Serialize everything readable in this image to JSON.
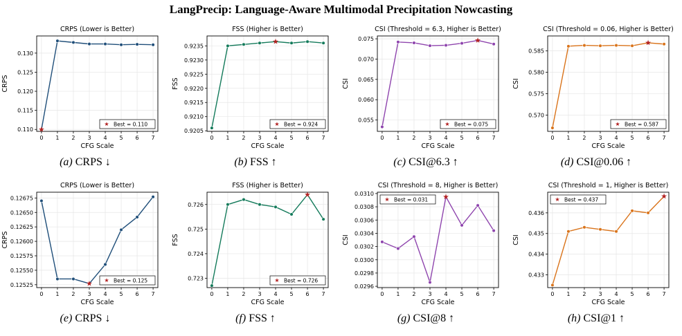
{
  "page": {
    "title": "LangPrecip: Language-Aware Multimodal Precipitation Nowcasting"
  },
  "colors": {
    "crps": "#1f4e79",
    "fss": "#137a5a",
    "csi_purple": "#8e44ad",
    "csi_orange": "#d9731a",
    "star": "#b22222",
    "grid": "#e6e6e6"
  },
  "chart_data": [
    {
      "id": "a",
      "type": "line",
      "caption_prefix": "(a)",
      "caption": "CRPS ↓",
      "title": "CRPS (Lower is Better)",
      "xlabel": "CFG Scale",
      "ylabel": "CRPS",
      "x": [
        0,
        1,
        2,
        3,
        4,
        5,
        6,
        7
      ],
      "values": [
        0.11,
        0.1332,
        0.1328,
        0.1324,
        0.1324,
        0.1322,
        0.1323,
        0.1322
      ],
      "ylim": [
        0.1095,
        0.1345
      ],
      "yticks": [
        "0.110",
        "0.115",
        "0.120",
        "0.125",
        "0.130"
      ],
      "ytick_values": [
        0.11,
        0.115,
        0.12,
        0.125,
        0.13
      ],
      "best_index": 0,
      "best_label": "Best = 0.110",
      "legend": "bottom-right",
      "grid": true,
      "color_key": "crps"
    },
    {
      "id": "b",
      "type": "line",
      "caption_prefix": "(b)",
      "caption": "FSS ↑",
      "title": "FSS (Higher is Better)",
      "xlabel": "CFG Scale",
      "ylabel": "FSS",
      "x": [
        0,
        1,
        2,
        3,
        4,
        5,
        6,
        7
      ],
      "values": [
        0.9206,
        0.9235,
        0.92355,
        0.9236,
        0.92365,
        0.9236,
        0.92365,
        0.9236
      ],
      "ylim": [
        0.92048,
        0.92385
      ],
      "yticks": [
        "0.9205",
        "0.9210",
        "0.9215",
        "0.9220",
        "0.9225",
        "0.9230",
        "0.9235"
      ],
      "ytick_values": [
        0.9205,
        0.921,
        0.9215,
        0.922,
        0.9225,
        0.923,
        0.9235
      ],
      "best_index": 4,
      "best_label": "Best = 0.924",
      "legend": "bottom-right",
      "grid": true,
      "color_key": "fss"
    },
    {
      "id": "c",
      "type": "line",
      "caption_prefix": "(c)",
      "caption": "CSI@6.3 ↑",
      "title": "CSI (Threshold = 6.3, Higher is Better)",
      "xlabel": "CFG Scale",
      "ylabel": "CSI",
      "x": [
        0,
        1,
        2,
        3,
        4,
        5,
        6,
        7
      ],
      "values": [
        0.0533,
        0.0742,
        0.074,
        0.0733,
        0.0734,
        0.0739,
        0.0746,
        0.0737
      ],
      "ylim": [
        0.0522,
        0.0757
      ],
      "yticks": [
        "0.055",
        "0.060",
        "0.065",
        "0.070",
        "0.075"
      ],
      "ytick_values": [
        0.055,
        0.06,
        0.065,
        0.07,
        0.075
      ],
      "best_index": 6,
      "best_label": "Best = 0.075",
      "legend": "bottom-right",
      "grid": true,
      "color_key": "csi_purple"
    },
    {
      "id": "d",
      "type": "line",
      "caption_prefix": "(d)",
      "caption": "CSI@0.06 ↑",
      "title": "CSI (Threshold = 0.06, Higher is Better)",
      "xlabel": "CFG Scale",
      "ylabel": "CSI",
      "x": [
        0,
        1,
        2,
        3,
        4,
        5,
        6,
        7
      ],
      "values": [
        0.567,
        0.5861,
        0.5863,
        0.5862,
        0.5863,
        0.5862,
        0.5869,
        0.5866
      ],
      "ylim": [
        0.5662,
        0.5885
      ],
      "yticks": [
        "0.570",
        "0.575",
        "0.580",
        "0.585"
      ],
      "ytick_values": [
        0.57,
        0.575,
        0.58,
        0.585
      ],
      "best_index": 6,
      "best_label": "Best = 0.587",
      "legend": "bottom-right",
      "grid": true,
      "color_key": "csi_orange"
    },
    {
      "id": "e",
      "type": "line",
      "caption_prefix": "(e)",
      "caption": "CRPS ↓",
      "title": "CRPS (Lower is Better)",
      "xlabel": "CFG Scale",
      "ylabel": "CRPS",
      "x": [
        0,
        1,
        2,
        3,
        4,
        5,
        6,
        7
      ],
      "values": [
        0.1267,
        0.12535,
        0.12535,
        0.12527,
        0.1256,
        0.1262,
        0.12642,
        0.12677
      ],
      "ylim": [
        0.1252,
        0.12685
      ],
      "yticks": [
        "0.12525",
        "0.12550",
        "0.12575",
        "0.12600",
        "0.12625",
        "0.12650",
        "0.12675"
      ],
      "ytick_values": [
        0.12525,
        0.1255,
        0.12575,
        0.126,
        0.12625,
        0.1265,
        0.12675
      ],
      "best_index": 3,
      "best_label": "Best = 0.125",
      "legend": "bottom-right",
      "grid": true,
      "color_key": "crps"
    },
    {
      "id": "f",
      "type": "line",
      "caption_prefix": "(f)",
      "caption": "FSS ↑",
      "title": "FSS (Higher is Better)",
      "xlabel": "CFG Scale",
      "ylabel": "FSS",
      "x": [
        0,
        1,
        2,
        3,
        4,
        5,
        6,
        7
      ],
      "values": [
        0.7227,
        0.726,
        0.7262,
        0.726,
        0.7259,
        0.7256,
        0.7264,
        0.7254
      ],
      "ylim": [
        0.72262,
        0.7265
      ],
      "yticks": [
        "0.723",
        "0.724",
        "0.725",
        "0.726"
      ],
      "ytick_values": [
        0.723,
        0.724,
        0.725,
        0.726
      ],
      "best_index": 6,
      "best_label": "Best = 0.726",
      "legend": "bottom-right",
      "grid": true,
      "color_key": "fss"
    },
    {
      "id": "g",
      "type": "line",
      "caption_prefix": "(g)",
      "caption": "CSI@8 ↑",
      "title": "CSI (Threshold = 8, Higher is Better)",
      "xlabel": "CFG Scale",
      "ylabel": "CSI",
      "x": [
        0,
        1,
        2,
        3,
        4,
        5,
        6,
        7
      ],
      "values": [
        0.03027,
        0.03017,
        0.03035,
        0.02966,
        0.03095,
        0.03052,
        0.03082,
        0.03044
      ],
      "ylim": [
        0.02958,
        0.03102
      ],
      "yticks": [
        "0.0296",
        "0.0298",
        "0.0300",
        "0.0302",
        "0.0304",
        "0.0306",
        "0.0308",
        "0.0310"
      ],
      "ytick_values": [
        0.0296,
        0.0298,
        0.03,
        0.0302,
        0.0304,
        0.0306,
        0.0308,
        0.031
      ],
      "best_index": 4,
      "best_label": "Best = 0.031",
      "legend": "top-left",
      "grid": true,
      "color_key": "csi_purple"
    },
    {
      "id": "h",
      "type": "line",
      "caption_prefix": "(h)",
      "caption": "CSI@1 ↑",
      "title": "CSI (Threshold = 1, Higher is Better)",
      "xlabel": "CFG Scale",
      "ylabel": "CSI",
      "x": [
        0,
        1,
        2,
        3,
        4,
        5,
        6,
        7
      ],
      "values": [
        0.4325,
        0.4351,
        0.4353,
        0.4352,
        0.4351,
        0.4361,
        0.436,
        0.4368
      ],
      "ylim": [
        0.43238,
        0.437
      ],
      "yticks": [
        "0.433",
        "0.434",
        "0.435",
        "0.436"
      ],
      "ytick_values": [
        0.433,
        0.434,
        0.435,
        0.436
      ],
      "best_index": 7,
      "best_label": "Best = 0.437",
      "legend": "top-left",
      "grid": true,
      "color_key": "csi_orange"
    }
  ]
}
